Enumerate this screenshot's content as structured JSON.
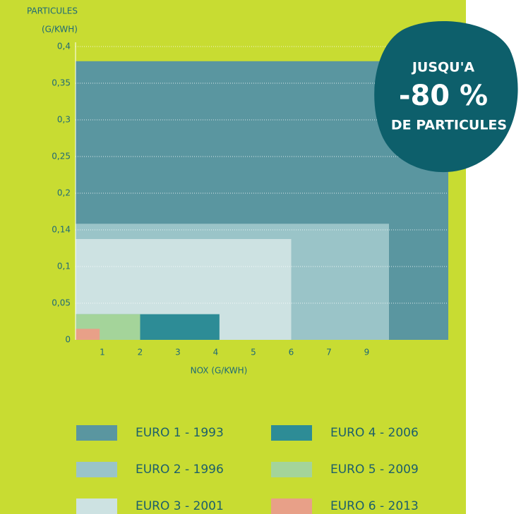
{
  "chart_data": {
    "type": "rect-area",
    "y_label": [
      "PARTICULES",
      "(G/KWH)"
    ],
    "x_label": "NOX (G/KWH)",
    "annotation": [
      "JUSQU'A",
      "-80 %",
      "DE PARTICULES"
    ],
    "xlim": [
      0,
      13.4
    ],
    "xticks": [
      1,
      2,
      3,
      4,
      5,
      6,
      7,
      9
    ],
    "ylim": [
      0,
      0.4
    ],
    "yticks": [
      0,
      {
        "value": 0.05,
        "label": "0,05"
      },
      {
        "value": 0.1,
        "label": "0,1"
      },
      {
        "value": 0.14,
        "label": "0,14"
      },
      {
        "value": 0.2,
        "label": "0,2"
      },
      {
        "value": 0.25,
        "label": "0,25"
      },
      {
        "value": 0.3,
        "label": "0,3"
      },
      {
        "value": 0.35,
        "label": "0,35"
      },
      {
        "value": 0.4,
        "label": "0,4"
      }
    ],
    "grid": true,
    "series": [
      {
        "name": "EURO 1 - 1993",
        "color": "#5a96a0",
        "x": 13.4,
        "y": 0.38
      },
      {
        "name": "EURO 2 - 1996",
        "color": "#9ac4c8",
        "x": 10.2,
        "y": 0.15
      },
      {
        "name": "EURO 3 - 2001",
        "color": "#cde2e2",
        "x": 6,
        "y": 0.13
      },
      {
        "name": "EURO 4 - 2006",
        "color": "#2d8c96",
        "x": 4.1,
        "y": 0.035
      },
      {
        "name": "EURO 5 - 2009",
        "color": "#a4d49a",
        "x": 2,
        "y": 0.035
      },
      {
        "name": "EURO 6 - 2013",
        "color": "#e8a088",
        "x": 0.9,
        "y": 0.015
      }
    ]
  }
}
